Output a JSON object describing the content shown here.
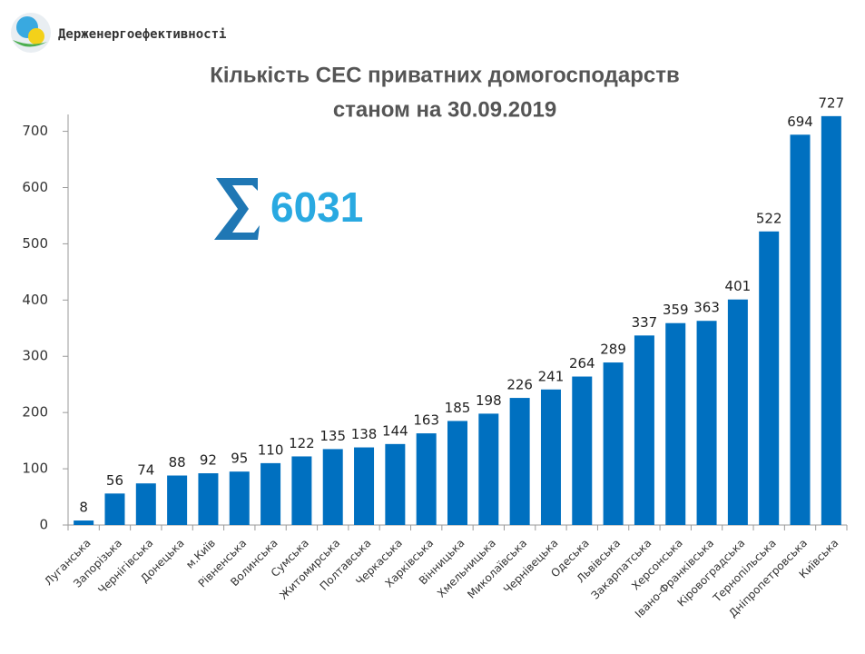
{
  "logo_text": "Держенергоефективності",
  "chart_data": {
    "type": "bar",
    "title": "Кількість СЕС приватних домогосподарств",
    "subtitle": "станом на 30.09.2019",
    "total": "6031",
    "categories": [
      "Луганська",
      "Запорізька",
      "Чернігівська",
      "Донецька",
      "м.Київ",
      "Рівненська",
      "Волинська",
      "Сумська",
      "Житомирська",
      "Полтавська",
      "Черкаська",
      "Харківська",
      "Вінницька",
      "Хмельницька",
      "Миколаївська",
      "Чернівецька",
      "Одеська",
      "Львівська",
      "Закарпатська",
      "Херсонська",
      "Івано-Франківська",
      "Кіровоградська",
      "Тернопільська",
      "Дніпропетровська",
      "Київська"
    ],
    "values": [
      8,
      56,
      74,
      88,
      92,
      95,
      110,
      122,
      135,
      138,
      144,
      163,
      185,
      198,
      226,
      241,
      264,
      289,
      337,
      359,
      363,
      401,
      522,
      694,
      727
    ],
    "color": "#0070c0",
    "ylim": [
      0,
      730
    ],
    "yticks": [
      0,
      100,
      200,
      300,
      400,
      500,
      600,
      700
    ],
    "grid": false
  }
}
